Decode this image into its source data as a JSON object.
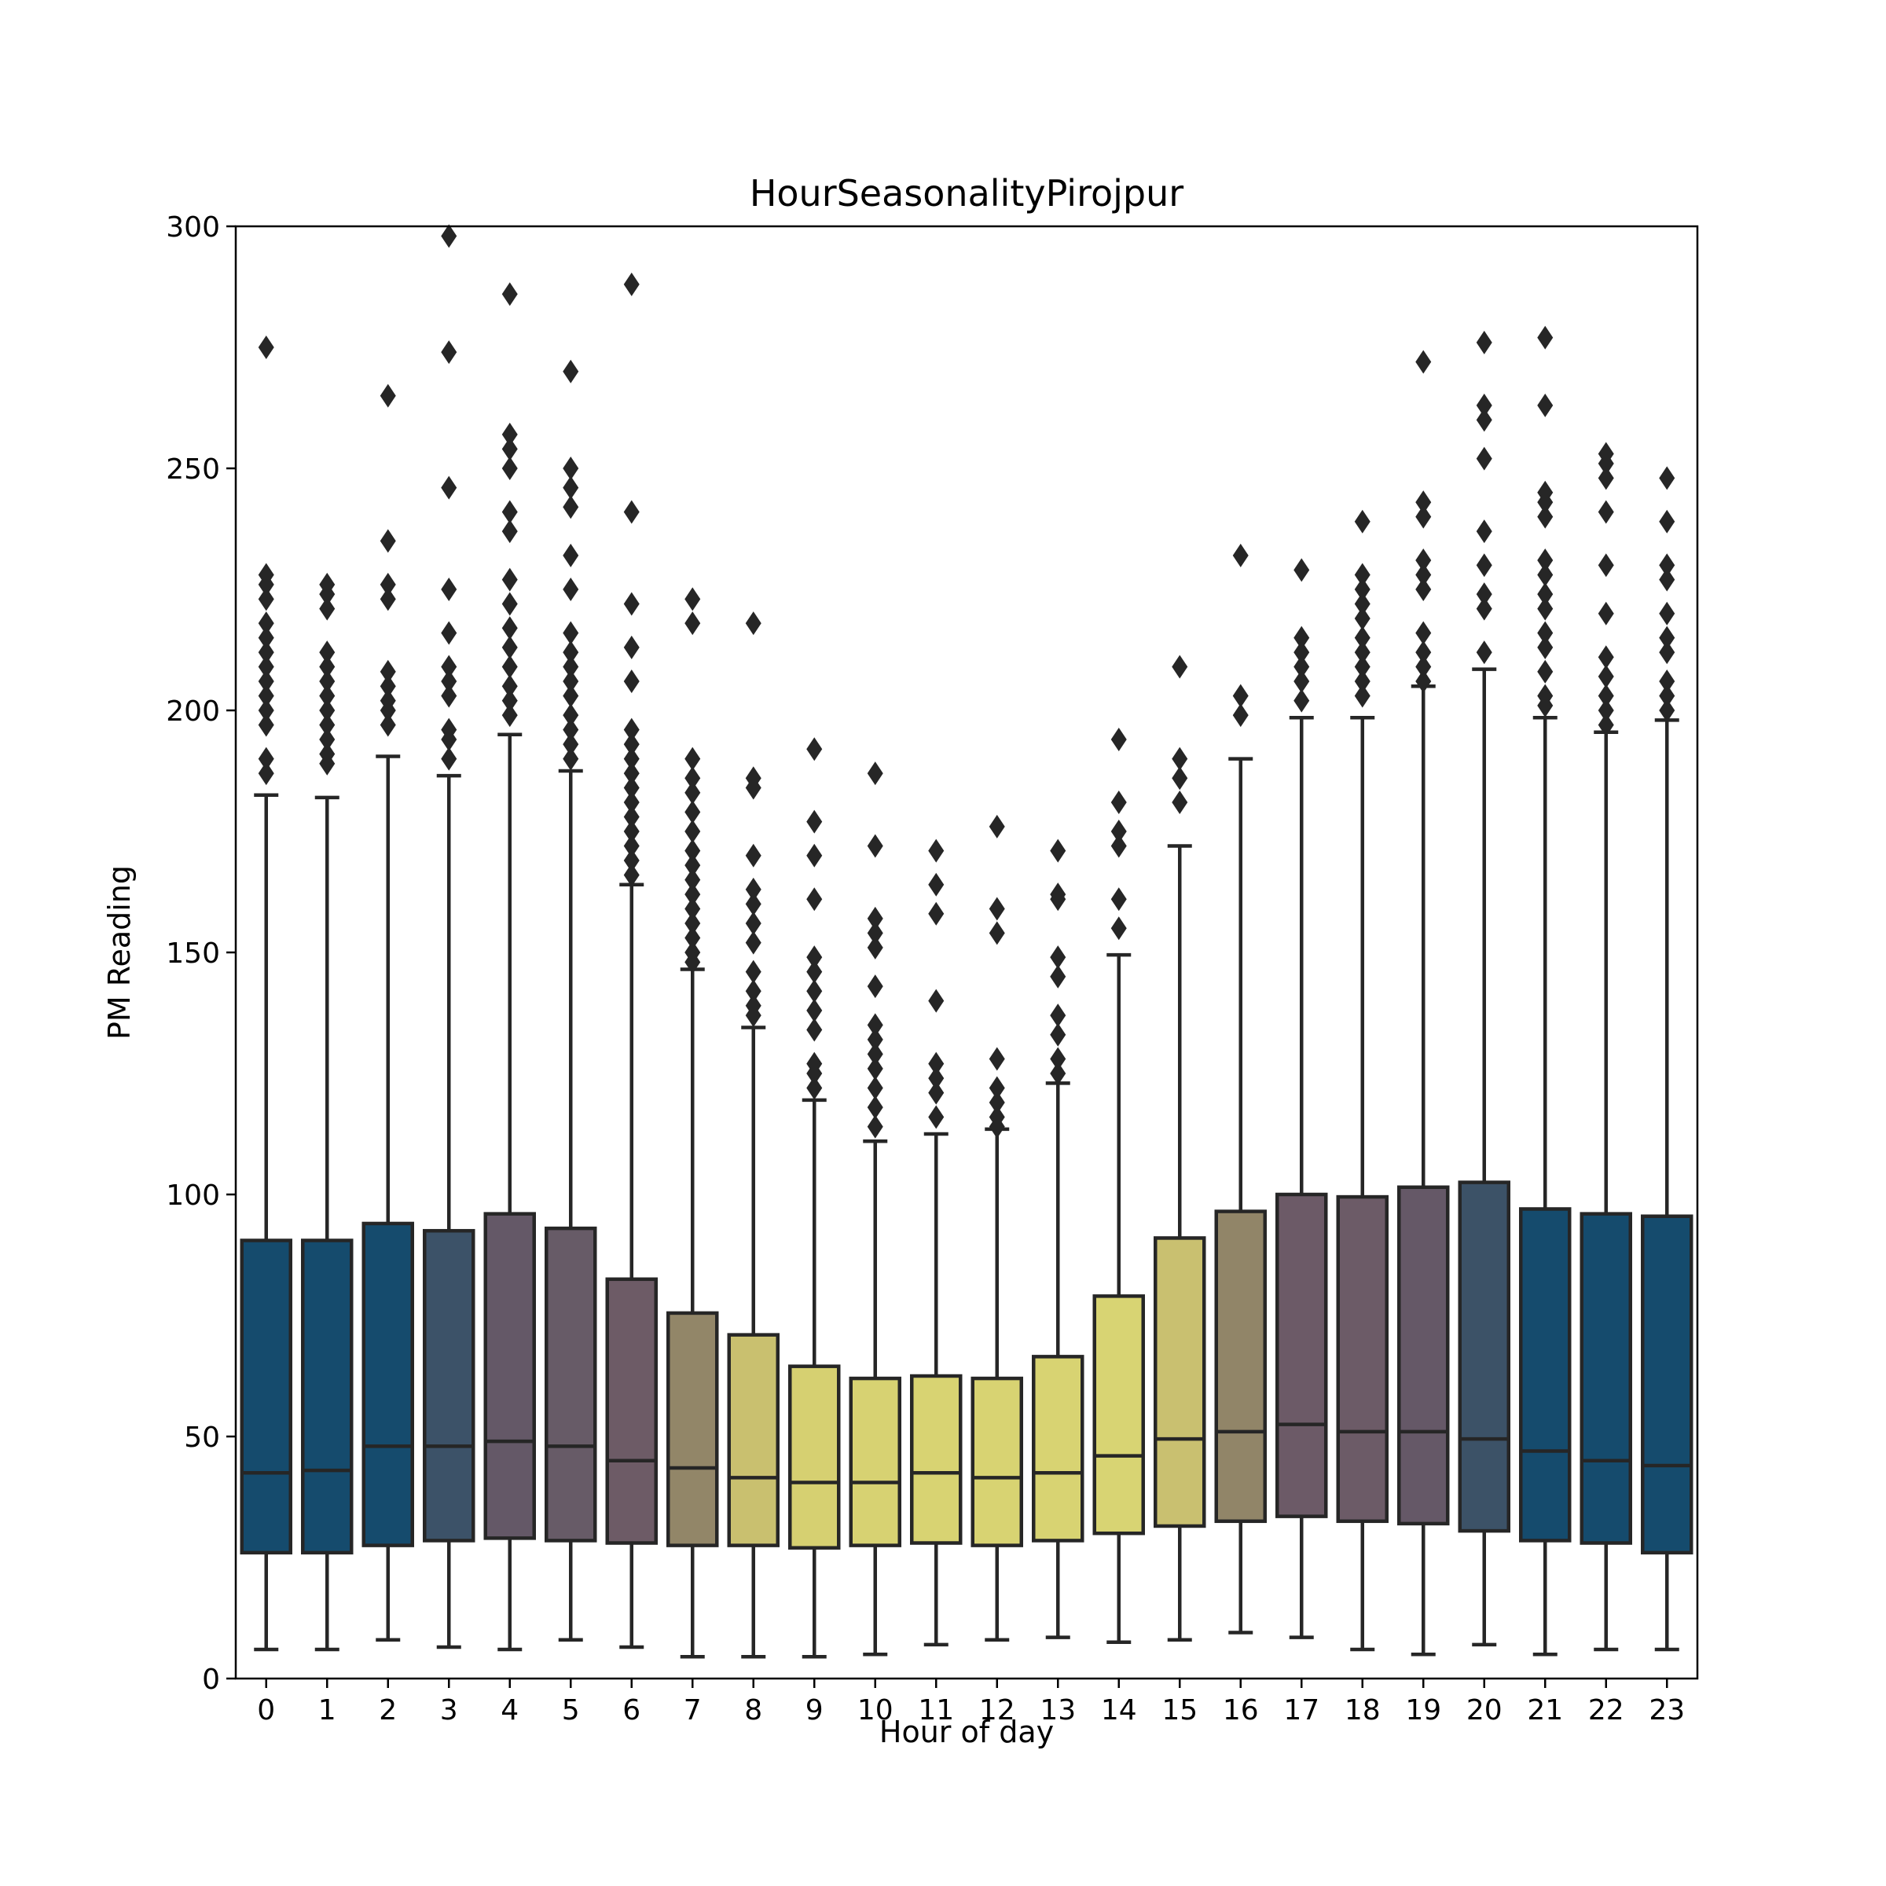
{
  "chart_data": {
    "type": "boxplot",
    "title": "HourSeasonalityPirojpur",
    "xlabel": "Hour of day",
    "ylabel": "PM Reading",
    "ylim": [
      0,
      300
    ],
    "yticks": [
      0,
      50,
      100,
      150,
      200,
      250,
      300
    ],
    "grid": false,
    "categories": [
      "0",
      "1",
      "2",
      "3",
      "4",
      "5",
      "6",
      "7",
      "8",
      "9",
      "10",
      "11",
      "12",
      "13",
      "14",
      "15",
      "16",
      "17",
      "18",
      "19",
      "20",
      "21",
      "22",
      "23"
    ],
    "colors": [
      "#154b6d",
      "#154b6d",
      "#154b6d",
      "#3c5268",
      "#645867",
      "#675b67",
      "#6d5b66",
      "#928668",
      "#c9c06f",
      "#d6d071",
      "#d7d272",
      "#d8d372",
      "#d8d372",
      "#d8d372",
      "#d8d473",
      "#c9c070",
      "#918568",
      "#6c5a67",
      "#6c5b67",
      "#655867",
      "#3c5267",
      "#154b6d",
      "#154b6d",
      "#154b6d"
    ],
    "boxes": [
      {
        "whislo": 6,
        "q1": 26,
        "median": 42.5,
        "q3": 90.5,
        "whishi": 182.5,
        "fliers": [
          275,
          228,
          226,
          223,
          218,
          215,
          212,
          209,
          206,
          203,
          200,
          197,
          190,
          187
        ]
      },
      {
        "whislo": 6,
        "q1": 26,
        "median": 43,
        "q3": 90.5,
        "whishi": 182,
        "fliers": [
          226,
          224,
          221,
          212,
          209,
          206,
          203,
          200,
          197,
          194,
          191,
          189
        ]
      },
      {
        "whislo": 8,
        "q1": 27.5,
        "median": 48,
        "q3": 94,
        "whishi": 190.5,
        "fliers": [
          265,
          235,
          226,
          223,
          208,
          205,
          202,
          200,
          197
        ]
      },
      {
        "whislo": 6.5,
        "q1": 28.5,
        "median": 48,
        "q3": 92.5,
        "whishi": 186.5,
        "fliers": [
          298,
          274,
          246,
          225,
          216,
          209,
          206,
          203,
          196,
          194,
          190
        ]
      },
      {
        "whislo": 6,
        "q1": 29,
        "median": 49,
        "q3": 96,
        "whishi": 195,
        "fliers": [
          286,
          257,
          254,
          250,
          241,
          237,
          227,
          222,
          217,
          213,
          209,
          205,
          202,
          199
        ]
      },
      {
        "whislo": 8,
        "q1": 28.5,
        "median": 48,
        "q3": 93,
        "whishi": 187.5,
        "fliers": [
          270,
          250,
          246,
          242,
          232,
          225,
          216,
          212,
          209,
          206,
          203,
          199,
          196,
          193,
          190
        ]
      },
      {
        "whislo": 6.5,
        "q1": 28,
        "median": 45,
        "q3": 82.5,
        "whishi": 164,
        "fliers": [
          288,
          241,
          222,
          213,
          206,
          196,
          193,
          190,
          187,
          184,
          181,
          178,
          175,
          172,
          169,
          166
        ]
      },
      {
        "whislo": 4.5,
        "q1": 27.5,
        "median": 43.5,
        "q3": 75.5,
        "whishi": 146.5,
        "fliers": [
          223,
          218,
          190,
          186,
          183,
          179,
          175,
          171,
          168,
          165,
          162,
          159,
          156,
          153,
          150,
          148
        ]
      },
      {
        "whislo": 4.5,
        "q1": 27.5,
        "median": 41.5,
        "q3": 71,
        "whishi": 134.5,
        "fliers": [
          218,
          186,
          184,
          170,
          163,
          160,
          156,
          152,
          146,
          142,
          139,
          137
        ]
      },
      {
        "whislo": 4.5,
        "q1": 27,
        "median": 40.5,
        "q3": 64.5,
        "whishi": 119.5,
        "fliers": [
          192,
          177,
          170,
          161,
          149,
          146,
          142,
          138,
          134,
          127,
          125,
          122
        ]
      },
      {
        "whislo": 5,
        "q1": 27.5,
        "median": 40.5,
        "q3": 62,
        "whishi": 111,
        "fliers": [
          187,
          172,
          157,
          154,
          151,
          143,
          135,
          132,
          129,
          126,
          122,
          118,
          114
        ]
      },
      {
        "whislo": 7,
        "q1": 28,
        "median": 42.5,
        "q3": 62.5,
        "whishi": 112.5,
        "fliers": [
          171,
          164,
          158,
          140,
          127,
          124,
          121,
          116
        ]
      },
      {
        "whislo": 8,
        "q1": 27.5,
        "median": 41.5,
        "q3": 62,
        "whishi": 113.5,
        "fliers": [
          176,
          159,
          154,
          128,
          122,
          119,
          116,
          114
        ]
      },
      {
        "whislo": 8.5,
        "q1": 28.5,
        "median": 42.5,
        "q3": 66.5,
        "whishi": 123,
        "fliers": [
          171,
          162,
          161,
          149,
          145,
          137,
          133,
          128,
          125
        ]
      },
      {
        "whislo": 7.5,
        "q1": 30,
        "median": 46,
        "q3": 79,
        "whishi": 149.5,
        "fliers": [
          194,
          181,
          175,
          172,
          161,
          155
        ]
      },
      {
        "whislo": 8,
        "q1": 31.5,
        "median": 49.5,
        "q3": 91,
        "whishi": 172,
        "fliers": [
          209,
          190,
          186,
          181
        ]
      },
      {
        "whislo": 9.5,
        "q1": 32.5,
        "median": 51,
        "q3": 96.5,
        "whishi": 190,
        "fliers": [
          232,
          203,
          199
        ]
      },
      {
        "whislo": 8.5,
        "q1": 33.5,
        "median": 52.5,
        "q3": 100,
        "whishi": 198.5,
        "fliers": [
          229,
          215,
          212,
          209,
          206,
          202
        ]
      },
      {
        "whislo": 6,
        "q1": 32.5,
        "median": 51,
        "q3": 99.5,
        "whishi": 198.5,
        "fliers": [
          239,
          228,
          225,
          222,
          219,
          215,
          212,
          209,
          206,
          203
        ]
      },
      {
        "whislo": 5,
        "q1": 32,
        "median": 51,
        "q3": 101.5,
        "whishi": 205,
        "fliers": [
          272,
          243,
          240,
          231,
          228,
          225,
          216,
          212,
          209,
          206
        ]
      },
      {
        "whislo": 7,
        "q1": 30.5,
        "median": 49.5,
        "q3": 102.5,
        "whishi": 208.5,
        "fliers": [
          276,
          263,
          260,
          252,
          237,
          230,
          224,
          221,
          212
        ]
      },
      {
        "whislo": 5,
        "q1": 28.5,
        "median": 47,
        "q3": 97,
        "whishi": 198.5,
        "fliers": [
          277,
          263,
          245,
          243,
          240,
          231,
          228,
          224,
          221,
          216,
          213,
          208,
          203,
          201
        ]
      },
      {
        "whislo": 6,
        "q1": 28,
        "median": 45,
        "q3": 96,
        "whishi": 195.5,
        "fliers": [
          253,
          251,
          248,
          241,
          230,
          220,
          211,
          207,
          203,
          200,
          197
        ]
      },
      {
        "whislo": 6,
        "q1": 26,
        "median": 44,
        "q3": 95.5,
        "whishi": 198,
        "fliers": [
          248,
          239,
          230,
          227,
          220,
          215,
          212,
          206,
          203,
          200
        ]
      }
    ]
  }
}
